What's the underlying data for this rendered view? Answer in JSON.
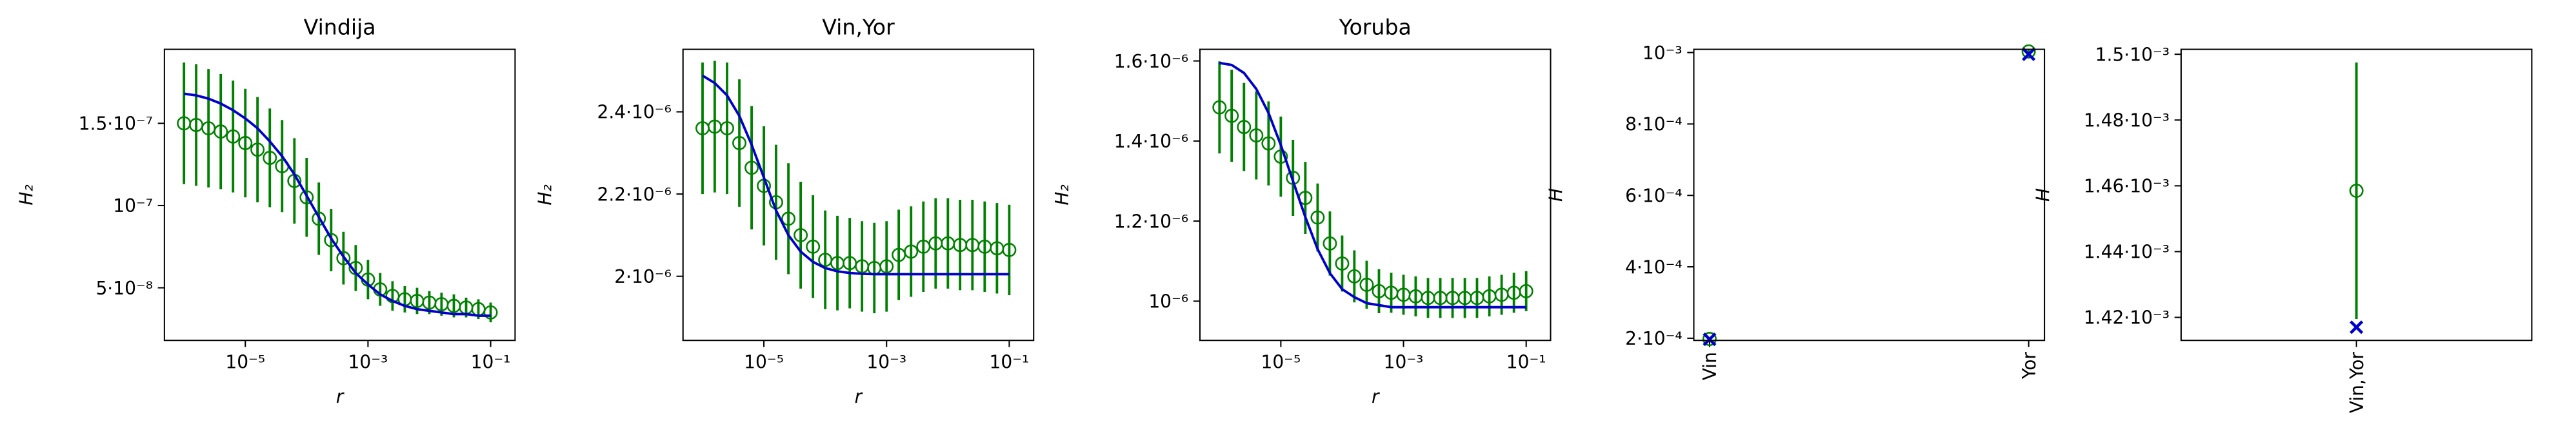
{
  "chart_data": [
    {
      "type": "errorbar",
      "title": "Vindija",
      "xlabel": "r",
      "ylabel": "H₂",
      "xscale": "log",
      "x": [
        1e-06,
        1.58e-06,
        2.51e-06,
        3.98e-06,
        6.31e-06,
        1e-05,
        1.58e-05,
        2.51e-05,
        3.98e-05,
        6.31e-05,
        0.0001,
        0.000158,
        0.000251,
        0.000398,
        0.000631,
        0.001,
        0.00158,
        0.00251,
        0.00398,
        0.00631,
        0.01,
        0.0158,
        0.0251,
        0.0398,
        0.0631,
        0.1
      ],
      "xlim": [
        4.8e-07,
        0.25
      ],
      "xticks": [
        {
          "value": 1e-05,
          "label": "10⁻⁵"
        },
        {
          "value": 0.001,
          "label": "10⁻³"
        },
        {
          "value": 0.1,
          "label": "10⁻¹"
        }
      ],
      "ylim": [
        1.8e-08,
        1.95e-07
      ],
      "yticks": [
        {
          "value": 5e-08,
          "label": "5·10⁻⁸"
        },
        {
          "value": 1e-07,
          "label": "10⁻⁷"
        },
        {
          "value": 1.5e-07,
          "label": "1.5·10⁻⁷"
        }
      ],
      "series": [
        {
          "color": "#008000",
          "marker": "o",
          "values": [
            1.5e-07,
            1.49e-07,
            1.47e-07,
            1.45e-07,
            1.42e-07,
            1.38e-07,
            1.34e-07,
            1.29e-07,
            1.24e-07,
            1.15e-07,
            1.05e-07,
            9.2e-08,
            7.9e-08,
            6.8e-08,
            6.2e-08,
            5.5e-08,
            4.9e-08,
            4.5e-08,
            4.3e-08,
            4.2e-08,
            4.1e-08,
            4e-08,
            3.9e-08,
            3.8e-08,
            3.7e-08,
            3.5e-08
          ],
          "errors": [
            3.7e-08,
            3.7e-08,
            3.6e-08,
            3.5e-08,
            3.4e-08,
            3.3e-08,
            3.2e-08,
            3e-08,
            2.8e-08,
            2.6e-08,
            2.4e-08,
            2.2e-08,
            1.9e-08,
            1.6e-08,
            1.4e-08,
            1.2e-08,
            1e-08,
            9e-09,
            8e-09,
            8e-09,
            7e-09,
            7e-09,
            7e-09,
            6e-09,
            6e-09,
            6e-09
          ]
        },
        {
          "color": "#0000cd",
          "marker": "line",
          "values": [
            1.68e-07,
            1.67e-07,
            1.65e-07,
            1.62e-07,
            1.58e-07,
            1.53e-07,
            1.47e-07,
            1.39e-07,
            1.3e-07,
            1.19e-07,
            1.06e-07,
            9.3e-08,
            8e-08,
            6.9e-08,
            5.9e-08,
            5.2e-08,
            4.6e-08,
            4.2e-08,
            3.9e-08,
            3.7e-08,
            3.6e-08,
            3.5e-08,
            3.4e-08,
            3.4e-08,
            3.3e-08,
            3.3e-08
          ]
        }
      ]
    },
    {
      "type": "errorbar",
      "title": "Vin,Yor",
      "xlabel": "r",
      "ylabel": "H₂",
      "xscale": "log",
      "x": [
        1e-06,
        1.58e-06,
        2.51e-06,
        3.98e-06,
        6.31e-06,
        1e-05,
        1.58e-05,
        2.51e-05,
        3.98e-05,
        6.31e-05,
        0.0001,
        0.000158,
        0.000251,
        0.000398,
        0.000631,
        0.001,
        0.00158,
        0.00251,
        0.00398,
        0.00631,
        0.01,
        0.0158,
        0.0251,
        0.0398,
        0.0631,
        0.1
      ],
      "xlim": [
        4.8e-07,
        0.25
      ],
      "xticks": [
        {
          "value": 1e-05,
          "label": "10⁻⁵"
        },
        {
          "value": 0.001,
          "label": "10⁻³"
        },
        {
          "value": 0.1,
          "label": "10⁻¹"
        }
      ],
      "ylim": [
        1.844e-06,
        2.552e-06
      ],
      "yticks": [
        {
          "value": 2e-06,
          "label": "2·10⁻⁶"
        },
        {
          "value": 2.2e-06,
          "label": "2.2·10⁻⁶"
        },
        {
          "value": 2.4e-06,
          "label": "2.4·10⁻⁶"
        }
      ],
      "series": [
        {
          "color": "#008000",
          "marker": "o",
          "values": [
            2.36e-06,
            2.364e-06,
            2.36e-06,
            2.324e-06,
            2.264e-06,
            2.22e-06,
            2.18e-06,
            2.14e-06,
            2.1e-06,
            2.072e-06,
            2.04e-06,
            2.032e-06,
            2.032e-06,
            2.024e-06,
            2.02e-06,
            2.024e-06,
            2.052e-06,
            2.06e-06,
            2.072e-06,
            2.08e-06,
            2.08e-06,
            2.076e-06,
            2.076e-06,
            2.072e-06,
            2.068e-06,
            2.064e-06
          ],
          "errors": [
            1.6e-07,
            1.6e-07,
            1.6e-07,
            1.55e-07,
            1.5e-07,
            1.45e-07,
            1.4e-07,
            1.35e-07,
            1.3e-07,
            1.25e-07,
            1.2e-07,
            1.15e-07,
            1.1e-07,
            1.1e-07,
            1.1e-07,
            1.1e-07,
            1.1e-07,
            1.1e-07,
            1.1e-07,
            1.1e-07,
            1.1e-07,
            1.1e-07,
            1.1e-07,
            1.1e-07,
            1.1e-07,
            1.1e-07
          ]
        },
        {
          "color": "#0000cd",
          "marker": "line",
          "values": [
            2.488e-06,
            2.47e-06,
            2.44e-06,
            2.39e-06,
            2.32e-06,
            2.24e-06,
            2.16e-06,
            2.1e-06,
            2.06e-06,
            2.035e-06,
            2.02e-06,
            2.012e-06,
            2.008e-06,
            2.006e-06,
            2.005e-06,
            2.005e-06,
            2.005e-06,
            2.005e-06,
            2.005e-06,
            2.005e-06,
            2.005e-06,
            2.005e-06,
            2.005e-06,
            2.005e-06,
            2.005e-06,
            2.005e-06
          ]
        }
      ]
    },
    {
      "type": "errorbar",
      "title": "Yoruba",
      "xlabel": "r",
      "ylabel": "H₂",
      "xscale": "log",
      "x": [
        1e-06,
        1.58e-06,
        2.51e-06,
        3.98e-06,
        6.31e-06,
        1e-05,
        1.58e-05,
        2.51e-05,
        3.98e-05,
        6.31e-05,
        0.0001,
        0.000158,
        0.000251,
        0.000398,
        0.000631,
        0.001,
        0.00158,
        0.00251,
        0.00398,
        0.00631,
        0.01,
        0.0158,
        0.0251,
        0.0398,
        0.0631,
        0.1
      ],
      "xlim": [
        4.8e-07,
        0.25
      ],
      "xticks": [
        {
          "value": 1e-05,
          "label": "10⁻⁵"
        },
        {
          "value": 0.001,
          "label": "10⁻³"
        },
        {
          "value": 0.1,
          "label": "10⁻¹"
        }
      ],
      "ylim": [
        9.02e-07,
        1.629e-06
      ],
      "yticks": [
        {
          "value": 1e-06,
          "label": "10⁻⁶"
        },
        {
          "value": 1.2e-06,
          "label": "1.2·10⁻⁶"
        },
        {
          "value": 1.4e-06,
          "label": "1.4·10⁻⁶"
        },
        {
          "value": 1.6e-06,
          "label": "1.6·10⁻⁶"
        }
      ],
      "series": [
        {
          "color": "#008000",
          "marker": "o",
          "values": [
            1.484e-06,
            1.463e-06,
            1.435e-06,
            1.414e-06,
            1.394e-06,
            1.361e-06,
            1.308e-06,
            1.258e-06,
            1.209e-06,
            1.144e-06,
            1.094e-06,
            1.062e-06,
            1.041e-06,
            1.025e-06,
            1.021e-06,
            1.016e-06,
            1.012e-06,
            1.008e-06,
            1.008e-06,
            1.008e-06,
            1.008e-06,
            1.008e-06,
            1.012e-06,
            1.016e-06,
            1.021e-06,
            1.025e-06
          ],
          "errors": [
            1.15e-07,
            1.15e-07,
            1.1e-07,
            1.1e-07,
            1.05e-07,
            1e-07,
            9.5e-08,
            9e-08,
            8.5e-08,
            8e-08,
            7e-08,
            6.5e-08,
            6e-08,
            5.5e-08,
            5e-08,
            5e-08,
            5e-08,
            5e-08,
            5e-08,
            5e-08,
            5e-08,
            5e-08,
            5e-08,
            5e-08,
            5e-08,
            5e-08
          ]
        },
        {
          "color": "#0000cd",
          "marker": "line",
          "values": [
            1.595e-06,
            1.59e-06,
            1.57e-06,
            1.53e-06,
            1.47e-06,
            1.39e-06,
            1.3e-06,
            1.21e-06,
            1.13e-06,
            1.07e-06,
            1.03e-06,
            1.01e-06,
            9.95e-07,
            9.9e-07,
            9.85e-07,
            9.85e-07,
            9.85e-07,
            9.85e-07,
            9.85e-07,
            9.85e-07,
            9.85e-07,
            9.85e-07,
            9.85e-07,
            9.85e-07,
            9.85e-07,
            9.85e-07
          ]
        }
      ]
    },
    {
      "type": "errorbar",
      "ylabel": "H",
      "categories": [
        "Vin",
        "Yor"
      ],
      "ylim": [
        0.000194,
        0.001009
      ],
      "yticks": [
        {
          "value": 0.0002,
          "label": "2·10⁻⁴"
        },
        {
          "value": 0.0004,
          "label": "4·10⁻⁴"
        },
        {
          "value": 0.0006,
          "label": "6·10⁻⁴"
        },
        {
          "value": 0.0008,
          "label": "8·10⁻⁴"
        },
        {
          "value": 0.001,
          "label": "10⁻³"
        }
      ],
      "series": [
        {
          "color": "#008000",
          "marker": "o",
          "values": [
            0.000198,
            0.001003
          ],
          "errors": [
            4e-06,
            6e-06
          ]
        },
        {
          "color": "#0000cd",
          "marker": "x",
          "values": [
            0.000197,
            0.000995
          ]
        }
      ]
    },
    {
      "type": "errorbar",
      "ylabel": "H",
      "categories": [
        "Vin,Yor"
      ],
      "ylim": [
        0.001413,
        0.0015015
      ],
      "yticks": [
        {
          "value": 0.00142,
          "label": "1.42·10⁻³"
        },
        {
          "value": 0.00144,
          "label": "1.44·10⁻³"
        },
        {
          "value": 0.00146,
          "label": "1.46·10⁻³"
        },
        {
          "value": 0.00148,
          "label": "1.48·10⁻³"
        },
        {
          "value": 0.0015,
          "label": "1.5·10⁻³"
        }
      ],
      "series": [
        {
          "color": "#008000",
          "marker": "o",
          "values": [
            0.0014585
          ],
          "errors": [
            3.9e-05
          ]
        },
        {
          "color": "#0000cd",
          "marker": "x",
          "values": [
            0.001417
          ]
        }
      ]
    }
  ]
}
